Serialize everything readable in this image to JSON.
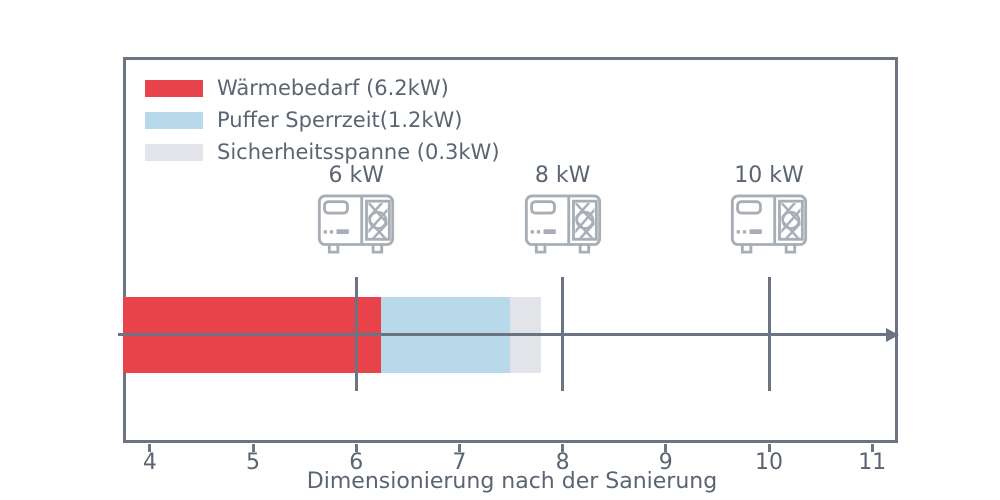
{
  "chart_data": {
    "type": "bar",
    "orientation": "horizontal",
    "stacked": true,
    "title": "",
    "xlabel": "Dimensionierung nach der Sanierung",
    "ylabel": "",
    "xlim": [
      3.74,
      11.25
    ],
    "xticks": [
      "4",
      "5",
      "6",
      "7",
      "8",
      "9",
      "10",
      "11"
    ],
    "grid": false,
    "legend_position": "upper-left",
    "segments": [
      {
        "name": "waermebedarf",
        "legend_label": "Wärmebedarf (6.2kW)",
        "value_kw": 6.2,
        "start": 0,
        "end": 6.24,
        "color": "#e8434a"
      },
      {
        "name": "puffer-sperrzeit",
        "legend_label": "Puffer Sperrzeit(1.2kW)",
        "value_kw": 1.2,
        "start": 6.24,
        "end": 7.49,
        "color": "#b8d9e9"
      },
      {
        "name": "sicherheitsspanne",
        "legend_label": "Sicherheitsspanne (0.3kW)",
        "value_kw": 0.3,
        "start": 7.49,
        "end": 7.79,
        "color": "#e2e4e9"
      }
    ],
    "heat_pump_markers": [
      {
        "label": "6 kW",
        "x_kw": 6
      },
      {
        "label": "8 kW",
        "x_kw": 8
      },
      {
        "label": "10 kW",
        "x_kw": 10
      }
    ],
    "axis_arrow": {
      "direction": "right",
      "at": "bar-center"
    }
  },
  "colors": {
    "frame": "#6b7480",
    "axis": "#6b7480",
    "text": "#5b6572",
    "icon_stroke": "#a8aeb6",
    "background": "#ffffff"
  },
  "icons": {
    "heat_pump": "heat-pump-outdoor-unit-icon"
  }
}
